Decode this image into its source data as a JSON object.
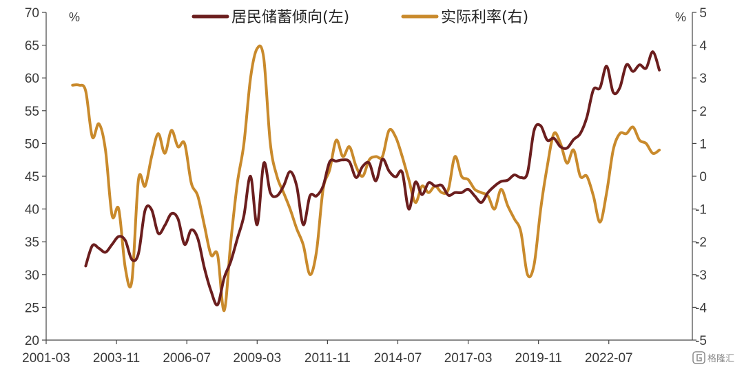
{
  "chart_data": {
    "type": "line",
    "title": "",
    "left_unit": "%",
    "right_unit": "%",
    "x_ticks": [
      "2001-03",
      "2003-11",
      "2006-07",
      "2009-03",
      "2011-11",
      "2014-07",
      "2017-03",
      "2019-11",
      "2022-07"
    ],
    "x_range": [
      "2001-03",
      "2025-09"
    ],
    "y_left": {
      "range": [
        20,
        70
      ],
      "ticks": [
        20,
        25,
        30,
        35,
        40,
        45,
        50,
        55,
        60,
        65,
        70
      ]
    },
    "y_right": {
      "range": [
        -5,
        5
      ],
      "ticks": [
        -5,
        -4,
        -3,
        -2,
        -1,
        0,
        1,
        2,
        3,
        4,
        5
      ]
    },
    "series": [
      {
        "name": "居民储蓄倾向(左)",
        "axis": "left",
        "color": "#6b1e1e",
        "points": [
          [
            "2002-09",
            31.3
          ],
          [
            "2002-12",
            34.4
          ],
          [
            "2003-03",
            34.0
          ],
          [
            "2003-06",
            33.4
          ],
          [
            "2003-09",
            34.6
          ],
          [
            "2003-12",
            35.8
          ],
          [
            "2004-03",
            35.2
          ],
          [
            "2004-06",
            32.3
          ],
          [
            "2004-09",
            33.2
          ],
          [
            "2004-12",
            39.8
          ],
          [
            "2005-03",
            39.9
          ],
          [
            "2005-06",
            36.3
          ],
          [
            "2005-09",
            37.5
          ],
          [
            "2005-12",
            39.3
          ],
          [
            "2006-03",
            38.5
          ],
          [
            "2006-06",
            34.6
          ],
          [
            "2006-09",
            36.8
          ],
          [
            "2006-12",
            35.5
          ],
          [
            "2007-03",
            31.0
          ],
          [
            "2007-06",
            27.5
          ],
          [
            "2007-09",
            25.4
          ],
          [
            "2007-12",
            29.5
          ],
          [
            "2008-03",
            32.0
          ],
          [
            "2008-06",
            35.5
          ],
          [
            "2008-09",
            39.0
          ],
          [
            "2008-12",
            45.0
          ],
          [
            "2009-03",
            37.6
          ],
          [
            "2009-06",
            47.0
          ],
          [
            "2009-09",
            42.5
          ],
          [
            "2009-12",
            42.0
          ],
          [
            "2010-03",
            43.5
          ],
          [
            "2010-06",
            45.7
          ],
          [
            "2010-09",
            43.5
          ],
          [
            "2010-12",
            37.6
          ],
          [
            "2011-03",
            42.0
          ],
          [
            "2011-06",
            42.0
          ],
          [
            "2011-09",
            43.5
          ],
          [
            "2011-12",
            47.2
          ],
          [
            "2012-03",
            47.3
          ],
          [
            "2012-06",
            47.5
          ],
          [
            "2012-09",
            47.2
          ],
          [
            "2012-12",
            44.8
          ],
          [
            "2013-03",
            46.5
          ],
          [
            "2013-06",
            47.0
          ],
          [
            "2013-09",
            44.3
          ],
          [
            "2013-12",
            47.6
          ],
          [
            "2014-03",
            45.8
          ],
          [
            "2014-06",
            44.9
          ],
          [
            "2014-09",
            45.6
          ],
          [
            "2014-12",
            40.0
          ],
          [
            "2015-03",
            44.1
          ],
          [
            "2015-06",
            42.2
          ],
          [
            "2015-09",
            44.0
          ],
          [
            "2015-12",
            43.5
          ],
          [
            "2016-03",
            43.6
          ],
          [
            "2016-06",
            42.1
          ],
          [
            "2016-09",
            42.5
          ],
          [
            "2016-12",
            42.5
          ],
          [
            "2017-03",
            43.0
          ],
          [
            "2017-06",
            42.0
          ],
          [
            "2017-09",
            41.0
          ],
          [
            "2017-12",
            42.5
          ],
          [
            "2018-03",
            43.5
          ],
          [
            "2018-06",
            44.2
          ],
          [
            "2018-09",
            44.4
          ],
          [
            "2018-12",
            45.2
          ],
          [
            "2019-03",
            44.8
          ],
          [
            "2019-06",
            45.5
          ],
          [
            "2019-09",
            52.0
          ],
          [
            "2019-12",
            52.7
          ],
          [
            "2020-03",
            50.5
          ],
          [
            "2020-06",
            50.8
          ],
          [
            "2020-09",
            49.5
          ],
          [
            "2020-12",
            49.3
          ],
          [
            "2021-03",
            50.6
          ],
          [
            "2021-06",
            51.5
          ],
          [
            "2021-09",
            54.0
          ],
          [
            "2021-12",
            58.2
          ],
          [
            "2022-03",
            58.5
          ],
          [
            "2022-06",
            61.8
          ],
          [
            "2022-09",
            57.8
          ],
          [
            "2022-12",
            58.5
          ],
          [
            "2023-03",
            62.0
          ],
          [
            "2023-06",
            61.0
          ],
          [
            "2023-09",
            62.0
          ],
          [
            "2023-12",
            61.5
          ],
          [
            "2024-03",
            64.0
          ],
          [
            "2024-06",
            61.2
          ]
        ]
      },
      {
        "name": "实际利率(右)",
        "axis": "right",
        "color": "#c98a2c",
        "points": [
          [
            "2002-03",
            2.78
          ],
          [
            "2002-06",
            2.78
          ],
          [
            "2002-09",
            2.6
          ],
          [
            "2002-12",
            1.2
          ],
          [
            "2003-03",
            1.6
          ],
          [
            "2003-06",
            0.8
          ],
          [
            "2003-09",
            -1.2
          ],
          [
            "2003-12",
            -1.0
          ],
          [
            "2004-03",
            -2.8
          ],
          [
            "2004-06",
            -3.2
          ],
          [
            "2004-09",
            -0.1
          ],
          [
            "2004-12",
            -0.3
          ],
          [
            "2005-03",
            0.6
          ],
          [
            "2005-06",
            1.3
          ],
          [
            "2005-09",
            0.7
          ],
          [
            "2005-12",
            1.4
          ],
          [
            "2006-03",
            0.9
          ],
          [
            "2006-06",
            1.0
          ],
          [
            "2006-09",
            -0.2
          ],
          [
            "2006-12",
            -0.6
          ],
          [
            "2007-03",
            -1.5
          ],
          [
            "2007-06",
            -2.4
          ],
          [
            "2007-09",
            -2.4
          ],
          [
            "2007-12",
            -4.1
          ],
          [
            "2008-03",
            -2.0
          ],
          [
            "2008-06",
            -0.2
          ],
          [
            "2008-09",
            1.0
          ],
          [
            "2008-12",
            3.0
          ],
          [
            "2009-03",
            3.9
          ],
          [
            "2009-06",
            3.6
          ],
          [
            "2009-09",
            1.0
          ],
          [
            "2009-12",
            0.0
          ],
          [
            "2010-03",
            -0.5
          ],
          [
            "2010-06",
            -1.0
          ],
          [
            "2010-09",
            -1.6
          ],
          [
            "2010-12",
            -2.1
          ],
          [
            "2011-03",
            -3.0
          ],
          [
            "2011-06",
            -2.3
          ],
          [
            "2011-09",
            -0.4
          ],
          [
            "2011-12",
            0.2
          ],
          [
            "2012-03",
            1.1
          ],
          [
            "2012-06",
            0.6
          ],
          [
            "2012-09",
            0.9
          ],
          [
            "2012-12",
            0.3
          ],
          [
            "2013-03",
            0.0
          ],
          [
            "2013-06",
            0.5
          ],
          [
            "2013-09",
            0.6
          ],
          [
            "2013-12",
            0.6
          ],
          [
            "2014-03",
            1.4
          ],
          [
            "2014-06",
            1.2
          ],
          [
            "2014-09",
            0.6
          ],
          [
            "2014-12",
            -0.1
          ],
          [
            "2015-03",
            -0.8
          ],
          [
            "2015-06",
            -0.3
          ],
          [
            "2015-09",
            -0.5
          ],
          [
            "2015-12",
            -0.3
          ],
          [
            "2016-03",
            -0.5
          ],
          [
            "2016-06",
            -0.4
          ],
          [
            "2016-09",
            0.6
          ],
          [
            "2016-12",
            0.0
          ],
          [
            "2017-03",
            -0.1
          ],
          [
            "2017-06",
            -0.4
          ],
          [
            "2017-09",
            -0.5
          ],
          [
            "2017-12",
            -0.6
          ],
          [
            "2018-03",
            -1.0
          ],
          [
            "2018-06",
            -0.4
          ],
          [
            "2018-09",
            -0.9
          ],
          [
            "2018-12",
            -1.3
          ],
          [
            "2019-03",
            -1.7
          ],
          [
            "2019-06",
            -3.0
          ],
          [
            "2019-09",
            -2.7
          ],
          [
            "2019-12",
            -1.0
          ],
          [
            "2020-03",
            0.3
          ],
          [
            "2020-06",
            1.3
          ],
          [
            "2020-09",
            1.0
          ],
          [
            "2020-12",
            0.4
          ],
          [
            "2021-03",
            0.8
          ],
          [
            "2021-06",
            0.0
          ],
          [
            "2021-09",
            0.0
          ],
          [
            "2021-12",
            -0.6
          ],
          [
            "2022-03",
            -1.4
          ],
          [
            "2022-06",
            -0.5
          ],
          [
            "2022-09",
            0.8
          ],
          [
            "2022-12",
            1.3
          ],
          [
            "2023-03",
            1.3
          ],
          [
            "2023-06",
            1.5
          ],
          [
            "2023-09",
            1.1
          ],
          [
            "2023-12",
            1.0
          ],
          [
            "2024-03",
            0.7
          ],
          [
            "2024-06",
            0.8
          ]
        ]
      }
    ],
    "legend_position": "top-center",
    "grid": false
  },
  "watermark": {
    "text": "格隆汇",
    "icon": "gelonghui-logo-icon"
  }
}
